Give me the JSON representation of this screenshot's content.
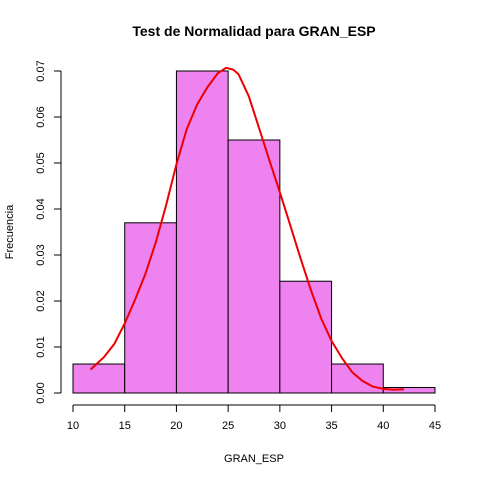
{
  "chart_data": {
    "type": "bar",
    "title": "Test de Normalidad para  GRAN_ESP",
    "xlabel": "GRAN_ESP",
    "ylabel": "Frecuencia",
    "bins": [
      {
        "start": 10,
        "end": 15,
        "value": 0.0063
      },
      {
        "start": 15,
        "end": 20,
        "value": 0.037
      },
      {
        "start": 20,
        "end": 25,
        "value": 0.07
      },
      {
        "start": 25,
        "end": 30,
        "value": 0.055
      },
      {
        "start": 30,
        "end": 35,
        "value": 0.0243
      },
      {
        "start": 35,
        "end": 40,
        "value": 0.0063
      },
      {
        "start": 40,
        "end": 45,
        "value": 0.0012
      }
    ],
    "curve": {
      "name": "",
      "color": "#ee0000",
      "x": [
        11.7,
        13,
        14,
        15,
        16,
        17,
        18,
        19,
        20,
        21,
        22,
        23,
        24,
        24.8,
        25.5,
        26,
        27,
        28,
        29,
        30,
        31,
        32,
        33,
        34,
        35,
        36,
        37,
        38,
        39,
        40,
        41,
        42
      ],
      "y": [
        0.0051,
        0.0078,
        0.0107,
        0.0151,
        0.0203,
        0.0259,
        0.0327,
        0.0408,
        0.0497,
        0.0574,
        0.0627,
        0.0665,
        0.0695,
        0.0707,
        0.0703,
        0.0693,
        0.0645,
        0.0575,
        0.0505,
        0.0436,
        0.0365,
        0.0293,
        0.0224,
        0.0162,
        0.0113,
        0.0076,
        0.0045,
        0.0026,
        0.0014,
        0.0009,
        0.0007,
        0.0008
      ]
    },
    "bar_color": "#ee82ee",
    "xlim": [
      10,
      45
    ],
    "ylim": [
      0,
      0.07
    ],
    "x_ticks": [
      "10",
      "15",
      "20",
      "25",
      "30",
      "35",
      "40",
      "45"
    ],
    "y_ticks": [
      "0.00",
      "0.01",
      "0.02",
      "0.03",
      "0.04",
      "0.05",
      "0.06",
      "0.07"
    ],
    "grid": false,
    "legend": "none"
  }
}
